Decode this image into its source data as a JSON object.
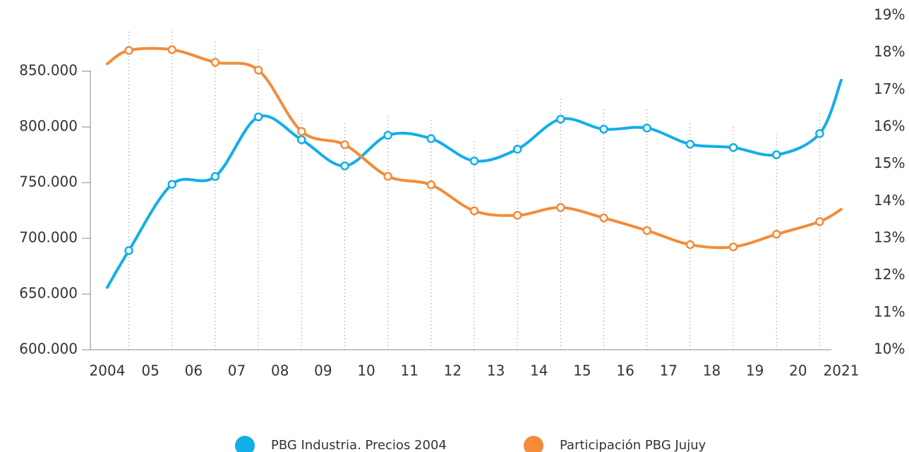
{
  "chart_data": {
    "type": "line",
    "x": [
      2004,
      2004.5,
      2005.5,
      2006.5,
      2007.5,
      2008.5,
      2009.5,
      2010.5,
      2011.5,
      2012.5,
      2013.5,
      2014.5,
      2015.5,
      2016.5,
      2017.5,
      2018.5,
      2019.5,
      2020.5,
      2021
    ],
    "xlim": [
      2004,
      2021
    ],
    "xticks": [
      {
        "value": 2004,
        "label": "2004"
      },
      {
        "value": 2005,
        "label": "05"
      },
      {
        "value": 2006,
        "label": "06"
      },
      {
        "value": 2007,
        "label": "07"
      },
      {
        "value": 2008,
        "label": "08"
      },
      {
        "value": 2009,
        "label": "09"
      },
      {
        "value": 2010,
        "label": "10"
      },
      {
        "value": 2011,
        "label": "11"
      },
      {
        "value": 2012,
        "label": "12"
      },
      {
        "value": 2013,
        "label": "13"
      },
      {
        "value": 2014,
        "label": "14"
      },
      {
        "value": 2015,
        "label": "15"
      },
      {
        "value": 2016,
        "label": "16"
      },
      {
        "value": 2017,
        "label": "17"
      },
      {
        "value": 2018,
        "label": "18"
      },
      {
        "value": 2019,
        "label": "19"
      },
      {
        "value": 2020,
        "label": "20"
      },
      {
        "value": 2021,
        "label": "2021"
      }
    ],
    "ylim": [
      600000,
      900000
    ],
    "yticks": [
      {
        "value": 600000,
        "label": "600.000"
      },
      {
        "value": 650000,
        "label": "650.000"
      },
      {
        "value": 700000,
        "label": "700.000"
      },
      {
        "value": 750000,
        "label": "750.000"
      },
      {
        "value": 800000,
        "label": "800.000"
      },
      {
        "value": 850000,
        "label": "850.000"
      }
    ],
    "y2lim": [
      10,
      19
    ],
    "y2ticks": [
      {
        "value": 10,
        "label": "10%"
      },
      {
        "value": 11,
        "label": "11%"
      },
      {
        "value": 12,
        "label": "12%"
      },
      {
        "value": 13,
        "label": "13%"
      },
      {
        "value": 14,
        "label": "14%"
      },
      {
        "value": 15,
        "label": "15%"
      },
      {
        "value": 16,
        "label": "16%"
      },
      {
        "value": 17,
        "label": "17%"
      },
      {
        "value": 18,
        "label": "18%"
      },
      {
        "value": 19,
        "label": "19%"
      }
    ],
    "series": [
      {
        "name": "PBG Industria. Precios 2004",
        "color": "#12aee9",
        "values": [
          656000,
          689000,
          748500,
          755500,
          809000,
          788500,
          765000,
          792500,
          789500,
          769500,
          780000,
          807000,
          798000,
          799000,
          784500,
          781500,
          775000,
          794000,
          842000
        ]
      },
      {
        "name": "Participación PBG Jujuy",
        "color": "#f28c3a",
        "axis": "y2",
        "values": [
          17.7,
          18.06,
          18.08,
          17.74,
          17.53,
          15.88,
          15.52,
          14.67,
          14.44,
          13.74,
          13.62,
          13.83,
          13.55,
          13.21,
          12.83,
          12.77,
          13.11,
          13.45,
          13.78
        ]
      }
    ]
  }
}
